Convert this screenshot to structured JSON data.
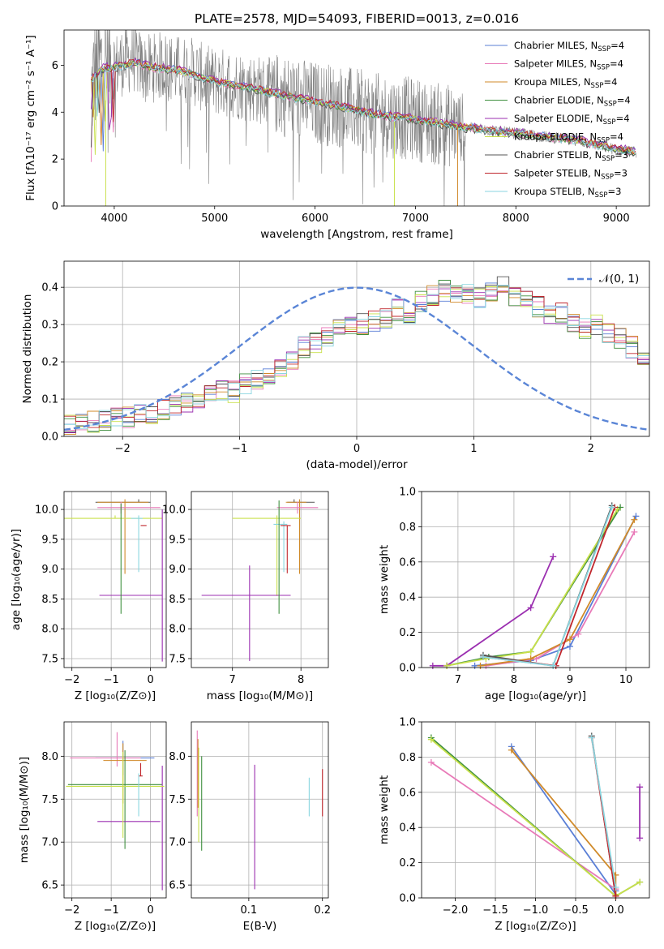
{
  "figure_title": "PLATE=2578, MJD=54093, FIBERID=0013, z=0.016",
  "legend": [
    {
      "label": "Chabrier MILES, N",
      "sub": "SSP",
      "tail": "=4",
      "color": "#5a7fd6"
    },
    {
      "label": "Salpeter MILES, N",
      "sub": "SSP",
      "tail": "=4",
      "color": "#e87ab8"
    },
    {
      "label": "Kroupa MILES, N",
      "sub": "SSP",
      "tail": "=4",
      "color": "#d08a2a"
    },
    {
      "label": "Chabrier ELODIE, N",
      "sub": "SSP",
      "tail": "=4",
      "color": "#3f8f3f"
    },
    {
      "label": "Salpeter ELODIE, N",
      "sub": "SSP",
      "tail": "=4",
      "color": "#9b2fb0"
    },
    {
      "label": "Kroupa ELODIE, N",
      "sub": "SSP",
      "tail": "=4",
      "color": "#c8e04a"
    },
    {
      "label": "Chabrier STELIB, N",
      "sub": "SSP",
      "tail": "=3",
      "color": "#555555"
    },
    {
      "label": "Salpeter STELIB, N",
      "sub": "SSP",
      "tail": "=3",
      "color": "#c0272d"
    },
    {
      "label": "Kroupa STELIB, N",
      "sub": "SSP",
      "tail": "=3",
      "color": "#8ad6e0"
    }
  ],
  "normal_legend": "𝒩(0, 1)",
  "chart_data": [
    {
      "id": "spectrum",
      "type": "line",
      "xlabel": "wavelength [Angstrom, rest frame]",
      "ylabel": "Flux [fλ10⁻¹⁷ erg cm⁻² s⁻¹ A⁻¹]",
      "xlim": [
        3500,
        9330
      ],
      "ylim": [
        0,
        7.5
      ],
      "xticks": [
        4000,
        5000,
        6000,
        7000,
        8000,
        9000
      ],
      "yticks": [
        0,
        2,
        4,
        6
      ],
      "data_series": {
        "name": "data",
        "color": "#808080",
        "x": [
          3770,
          3800,
          3850,
          3900,
          3950,
          4000,
          4100,
          4200,
          4300,
          4400,
          4500,
          4600,
          4700,
          4800,
          4900,
          5000,
          5200,
          5400,
          5600,
          5800,
          6000,
          6200,
          6400,
          6600,
          6800,
          7000,
          7200,
          7400,
          7600,
          7800,
          8000,
          8200,
          8400,
          8600,
          8800,
          9000,
          9200
        ],
        "y": [
          4.8,
          5.6,
          6.0,
          6.2,
          6.0,
          5.9,
          6.2,
          6.3,
          5.8,
          5.9,
          6.0,
          5.8,
          5.8,
          5.7,
          5.4,
          5.3,
          5.2,
          5.0,
          4.8,
          4.6,
          4.4,
          4.3,
          4.1,
          3.9,
          3.8,
          3.7,
          3.5,
          3.4,
          3.3,
          3.2,
          3.1,
          3.0,
          2.9,
          2.8,
          2.6,
          2.4,
          2.3
        ]
      },
      "model_series": {
        "x": [
          3770,
          3900,
          4000,
          4200,
          4400,
          4600,
          4800,
          5000,
          5400,
          5800,
          6200,
          6600,
          7000,
          7400,
          7800,
          8200,
          8600,
          9000,
          9200
        ],
        "y": [
          5.4,
          5.9,
          5.9,
          6.1,
          5.9,
          5.8,
          5.6,
          5.3,
          5.0,
          4.6,
          4.3,
          3.9,
          3.7,
          3.4,
          3.2,
          3.0,
          2.8,
          2.45,
          2.3
        ]
      }
    },
    {
      "id": "residuals",
      "type": "line",
      "xlabel": "(data-model)/error",
      "ylabel": "Normed distribution",
      "xlim": [
        -2.5,
        2.5
      ],
      "ylim": [
        0,
        0.47
      ],
      "xticks": [
        -2,
        -1,
        0,
        1,
        2
      ],
      "yticks": [
        0.0,
        0.1,
        0.2,
        0.3,
        0.4
      ],
      "bin_width": 0.1,
      "bin_start": -2.5,
      "base_heights": [
        0.03,
        0.03,
        0.04,
        0.04,
        0.05,
        0.05,
        0.06,
        0.06,
        0.07,
        0.08,
        0.09,
        0.1,
        0.11,
        0.12,
        0.12,
        0.14,
        0.15,
        0.16,
        0.19,
        0.21,
        0.24,
        0.25,
        0.27,
        0.29,
        0.29,
        0.3,
        0.31,
        0.32,
        0.34,
        0.33,
        0.36,
        0.38,
        0.39,
        0.39,
        0.38,
        0.37,
        0.39,
        0.4,
        0.37,
        0.36,
        0.35,
        0.32,
        0.33,
        0.3,
        0.29,
        0.3,
        0.28,
        0.26,
        0.24,
        0.22,
        0.2,
        0.19,
        0.17,
        0.16,
        0.14,
        0.13,
        0.12,
        0.11,
        0.1,
        0.09,
        0.09,
        0.08,
        0.07,
        0.07,
        0.06,
        0.05,
        0.05,
        0.04,
        0.04,
        0.03
      ]
    },
    {
      "id": "age-vs-Z",
      "type": "scatter",
      "xlabel": "Z [log₁₀(Z/Z⊙)]",
      "ylabel": "age  [log₁₀(age/yr)]",
      "xlim": [
        -2.2,
        0.4
      ],
      "ylim": [
        7.35,
        10.3
      ],
      "xticks": [
        -2,
        -1,
        0
      ],
      "yticks": [
        7.5,
        8.0,
        8.5,
        9.0,
        9.5,
        10.0
      ],
      "points": [
        {
          "x": -0.3,
          "y": 10.12,
          "xe": [
            1.1,
            0.3
          ],
          "ye": [
            0.0,
            0.05
          ],
          "c": 6
        },
        {
          "x": -0.65,
          "y": 10.12,
          "xe": [
            0.7,
            0.6
          ],
          "ye": [
            1.2,
            0.05
          ],
          "c": 2
        },
        {
          "x": -0.75,
          "y": 10.03,
          "xe": [
            0.6,
            1.0
          ],
          "ye": [
            0.1,
            0.1
          ],
          "c": 1
        },
        {
          "x": -0.9,
          "y": 9.85,
          "xe": [
            1.3,
            1.2
          ],
          "ye": [
            0.0,
            0.05
          ],
          "c": 5
        },
        {
          "x": -0.3,
          "y": 9.85,
          "xe": [
            0.2,
            0.1
          ],
          "ye": [
            0.9,
            0.05
          ],
          "c": 8
        },
        {
          "x": -0.2,
          "y": 9.73,
          "xe": [
            0.05,
            0.1
          ],
          "ye": [
            0.0,
            0.0
          ],
          "c": 7
        },
        {
          "x": -0.7,
          "y": 8.56,
          "xe": [
            0.6,
            1.0
          ],
          "ye": [
            0.0,
            0.0
          ],
          "c": 4
        },
        {
          "x": 0.3,
          "y": 9.0,
          "xe": [
            0.0,
            0.0
          ],
          "ye": [
            1.55,
            1.0
          ],
          "c": 4
        },
        {
          "x": -0.75,
          "y": 9.0,
          "xe": [
            0.0,
            0.0
          ],
          "ye": [
            0.75,
            1.1
          ],
          "c": 3
        }
      ]
    },
    {
      "id": "age-vs-mass",
      "type": "scatter",
      "xlabel": "mass [log₁₀(M/M⊙)]",
      "ylabel": "",
      "xlim": [
        6.4,
        8.4
      ],
      "ylim": [
        7.35,
        10.3
      ],
      "xticks": [
        7,
        8
      ],
      "yticks": [
        7.5,
        8.0,
        8.5,
        9.0,
        9.5,
        10.0
      ],
      "points": [
        {
          "x": 7.9,
          "y": 10.12,
          "xe": [
            0.1,
            0.3
          ],
          "ye": [
            0.0,
            0.05
          ],
          "c": 6
        },
        {
          "x": 7.98,
          "y": 10.12,
          "xe": [
            0.2,
            0.1
          ],
          "ye": [
            1.2,
            0.05
          ],
          "c": 2
        },
        {
          "x": 7.95,
          "y": 10.03,
          "xe": [
            0.3,
            0.3
          ],
          "ye": [
            0.1,
            0.1
          ],
          "c": 1
        },
        {
          "x": 7.65,
          "y": 9.85,
          "xe": [
            0.65,
            0.35
          ],
          "ye": [
            1.3,
            0.05
          ],
          "c": 5
        },
        {
          "x": 7.75,
          "y": 9.75,
          "xe": [
            0.15,
            0.05
          ],
          "ye": [
            0.8,
            0.05
          ],
          "c": 8
        },
        {
          "x": 7.8,
          "y": 9.73,
          "xe": [
            0.1,
            0.05
          ],
          "ye": [
            0.8,
            0.0
          ],
          "c": 7
        },
        {
          "x": 7.25,
          "y": 8.56,
          "xe": [
            0.7,
            0.6
          ],
          "ye": [
            1.1,
            0.5
          ],
          "c": 4
        },
        {
          "x": 7.68,
          "y": 9.8,
          "xe": [
            0.0,
            0.0
          ],
          "ye": [
            1.55,
            0.35
          ],
          "c": 3
        }
      ]
    },
    {
      "id": "weight-vs-age",
      "type": "line",
      "xlabel": "age  [log₁₀(age/yr)]",
      "ylabel": "mass weight",
      "xlim": [
        6.35,
        10.42
      ],
      "ylim": [
        0,
        1.0
      ],
      "xticks": [
        7,
        8,
        9,
        10
      ],
      "yticks": [
        0.0,
        0.2,
        0.4,
        0.6,
        0.8,
        1.0
      ],
      "series": [
        {
          "c": 0,
          "x": [
            7.3,
            8.3,
            9.0,
            10.18
          ],
          "y": [
            0.01,
            0.04,
            0.12,
            0.86
          ]
        },
        {
          "c": 1,
          "x": [
            7.5,
            8.4,
            9.15,
            10.15
          ],
          "y": [
            0.01,
            0.05,
            0.19,
            0.77
          ]
        },
        {
          "c": 2,
          "x": [
            7.4,
            8.3,
            9.0,
            10.15
          ],
          "y": [
            0.01,
            0.05,
            0.16,
            0.84
          ]
        },
        {
          "c": 3,
          "x": [
            6.8,
            7.55,
            8.3,
            9.9
          ],
          "y": [
            0.01,
            0.06,
            0.09,
            0.91
          ]
        },
        {
          "c": 4,
          "x": [
            6.55,
            6.8,
            8.3,
            8.7
          ],
          "y": [
            0.01,
            0.01,
            0.34,
            0.63
          ]
        },
        {
          "c": 5,
          "x": [
            6.8,
            7.5,
            8.3,
            9.85
          ],
          "y": [
            0.01,
            0.05,
            0.09,
            0.9
          ]
        },
        {
          "c": 6,
          "x": [
            7.45,
            8.7,
            9.75
          ],
          "y": [
            0.07,
            0.01,
            0.92
          ]
        },
        {
          "c": 7,
          "x": [
            7.45,
            8.75,
            9.8
          ],
          "y": [
            0.06,
            0.01,
            0.91
          ]
        },
        {
          "c": 8,
          "x": [
            7.45,
            8.7,
            9.75
          ],
          "y": [
            0.06,
            0.01,
            0.91
          ]
        }
      ]
    },
    {
      "id": "mass-vs-Z",
      "type": "scatter",
      "xlabel": "Z [log₁₀(Z/Z⊙)]",
      "ylabel": "mass [log₁₀(M/M⊙)]",
      "xlim": [
        -2.2,
        0.4
      ],
      "ylim": [
        6.35,
        8.4
      ],
      "xticks": [
        -2,
        -1,
        0
      ],
      "yticks": [
        6.5,
        7.0,
        7.5,
        8.0
      ],
      "points": [
        {
          "x": -0.7,
          "y": 7.98,
          "xe": [
            0.7,
            0.8
          ],
          "ye": [
            0.2,
            0.2
          ],
          "c": 0
        },
        {
          "x": -0.85,
          "y": 7.98,
          "xe": [
            1.2,
            0.6
          ],
          "ye": [
            0.1,
            0.3
          ],
          "c": 1
        },
        {
          "x": -0.7,
          "y": 7.95,
          "xe": [
            0.5,
            0.6
          ],
          "ye": [
            0.5,
            0.2
          ],
          "c": 2
        },
        {
          "x": -0.65,
          "y": 7.67,
          "xe": [
            1.45,
            0.95
          ],
          "ye": [
            0.75,
            0.4
          ],
          "c": 3
        },
        {
          "x": -0.5,
          "y": 7.24,
          "xe": [
            0.85,
            0.75
          ],
          "ye": [
            0.0,
            0.0
          ],
          "c": 4
        },
        {
          "x": 0.3,
          "y": 7.24,
          "xe": [
            0.0,
            0.0
          ],
          "ye": [
            0.8,
            0.65
          ],
          "c": 4
        },
        {
          "x": -0.7,
          "y": 7.65,
          "xe": [
            1.45,
            1.05
          ],
          "ye": [
            0.6,
            0.4
          ],
          "c": 5
        },
        {
          "x": -0.25,
          "y": 7.77,
          "xe": [
            0.05,
            0.05
          ],
          "ye": [
            0.0,
            0.15
          ],
          "c": 7
        },
        {
          "x": -0.3,
          "y": 7.5,
          "xe": [
            0.0,
            0.0
          ],
          "ye": [
            0.2,
            0.3
          ],
          "c": 8
        }
      ]
    },
    {
      "id": "mass-vs-EBV",
      "type": "scatter",
      "xlabel": "E(B-V)",
      "ylabel": "",
      "xlim": [
        0.022,
        0.208
      ],
      "ylim": [
        6.35,
        8.4
      ],
      "xticks": [
        0.1,
        0.2
      ],
      "yticks": [
        6.5,
        7.0,
        7.5,
        8.0
      ],
      "points": [
        {
          "x": 0.03,
          "y": 7.8,
          "xe": [
            0,
            0
          ],
          "ye": [
            0.5,
            0.5
          ],
          "c": 1
        },
        {
          "x": 0.032,
          "y": 7.6,
          "xe": [
            0,
            0
          ],
          "ye": [
            0.6,
            0.5
          ],
          "c": 5
        },
        {
          "x": 0.031,
          "y": 7.8,
          "xe": [
            0,
            0
          ],
          "ye": [
            0.4,
            0.4
          ],
          "c": 2
        },
        {
          "x": 0.036,
          "y": 7.45,
          "xe": [
            0,
            0
          ],
          "ye": [
            0.55,
            0.55
          ],
          "c": 3
        },
        {
          "x": 0.108,
          "y": 7.2,
          "xe": [
            0,
            0
          ],
          "ye": [
            0.75,
            0.7
          ],
          "c": 4
        },
        {
          "x": 0.182,
          "y": 7.55,
          "xe": [
            0,
            0
          ],
          "ye": [
            0.25,
            0.2
          ],
          "c": 8
        },
        {
          "x": 0.2,
          "y": 7.6,
          "xe": [
            0,
            0
          ],
          "ye": [
            0.3,
            0.25
          ],
          "c": 7
        }
      ]
    },
    {
      "id": "weight-vs-Z",
      "type": "line",
      "xlabel": "Z [log₁₀(Z/Z⊙)]",
      "ylabel": "mass weight",
      "xlim": [
        -2.42,
        0.42
      ],
      "ylim": [
        0,
        1.0
      ],
      "xticks": [
        -2.0,
        -1.5,
        -1.0,
        -0.5,
        0.0
      ],
      "yticks": [
        0.0,
        0.2,
        0.4,
        0.6,
        0.8,
        1.0
      ],
      "series": [
        {
          "c": 0,
          "x": [
            -1.3,
            0.0,
            0.0
          ],
          "y": [
            0.86,
            0.02,
            0.04
          ]
        },
        {
          "c": 1,
          "x": [
            -2.3,
            0.0,
            0.0
          ],
          "y": [
            0.77,
            0.05,
            0.02
          ]
        },
        {
          "c": 2,
          "x": [
            -1.3,
            0.0,
            0.0
          ],
          "y": [
            0.84,
            0.13,
            0.02
          ]
        },
        {
          "c": 3,
          "x": [
            -2.3,
            0.0,
            0.3
          ],
          "y": [
            0.91,
            0.01,
            0.09
          ]
        },
        {
          "c": 4,
          "x": [
            0.3,
            0.3
          ],
          "y": [
            0.63,
            0.34
          ]
        },
        {
          "c": 5,
          "x": [
            -2.3,
            0.0,
            0.3
          ],
          "y": [
            0.9,
            0.01,
            0.09
          ]
        },
        {
          "c": 6,
          "x": [
            -0.3,
            0.0
          ],
          "y": [
            0.92,
            0.01
          ]
        },
        {
          "c": 7,
          "x": [
            -0.3,
            0.0
          ],
          "y": [
            0.91,
            0.01
          ]
        },
        {
          "c": 8,
          "x": [
            -0.3,
            0.0
          ],
          "y": [
            0.91,
            0.06
          ]
        }
      ]
    }
  ]
}
